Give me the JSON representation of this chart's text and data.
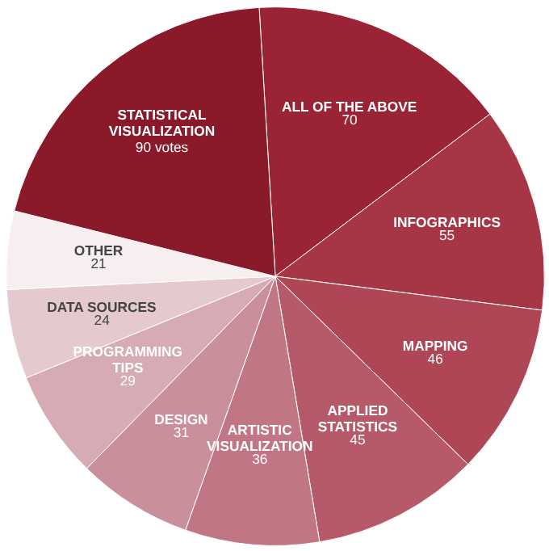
{
  "chart_data": {
    "type": "pie",
    "categories": [
      "ALL OF THE ABOVE",
      "INFOGRAPHICS",
      "MAPPING",
      "APPLIED\nSTATISTICS",
      "ARTISTIC\nVISUALIZATION",
      "DESIGN",
      "PROGRAMMING\nTIPS",
      "DATA SOURCES",
      "OTHER",
      "STATISTICAL\nVISUALIZATION"
    ],
    "values": [
      70,
      55,
      46,
      45,
      36,
      31,
      29,
      24,
      21,
      90
    ],
    "value_labels": [
      "70",
      "55",
      "46",
      "45",
      "36",
      "31",
      "29",
      "24",
      "21",
      "90 votes"
    ],
    "colors": [
      "#9a2335",
      "#a63546",
      "#ae4656",
      "#b65a69",
      "#c07783",
      "#c98f9a",
      "#d6abb3",
      "#e4c9ce",
      "#f7efef",
      "#8a1a2a"
    ]
  }
}
